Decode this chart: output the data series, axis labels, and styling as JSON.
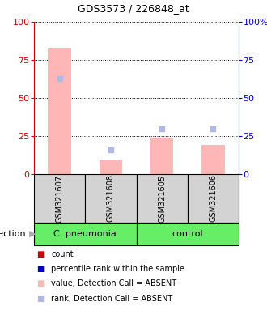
{
  "title": "GDS3573 / 226848_at",
  "samples": [
    "GSM321607",
    "GSM321608",
    "GSM321605",
    "GSM321606"
  ],
  "bar_values_absent": [
    83,
    9,
    24,
    19
  ],
  "rank_values_absent": [
    63,
    16,
    30,
    30
  ],
  "ylim": [
    0,
    100
  ],
  "yticks": [
    0,
    25,
    50,
    75,
    100
  ],
  "left_axis_color": "#cc0000",
  "right_axis_color": "#0000cc",
  "bar_color_absent": "#ffb6b6",
  "rank_color_absent": "#b0b8e8",
  "group_label_left": "C. pneumonia",
  "group_label_right": "control",
  "group_bg_color": "#66ee66",
  "sample_bg_color": "#d3d3d3",
  "infection_label": "infection",
  "legend_items": [
    {
      "color": "#cc0000",
      "label": "count"
    },
    {
      "color": "#0000cc",
      "label": "percentile rank within the sample"
    },
    {
      "color": "#ffb6b6",
      "label": "value, Detection Call = ABSENT"
    },
    {
      "color": "#b0b8e8",
      "label": "rank, Detection Call = ABSENT"
    }
  ],
  "title_fontsize": 9,
  "axis_fontsize": 8,
  "sample_fontsize": 7,
  "group_fontsize": 8,
  "legend_fontsize": 7
}
